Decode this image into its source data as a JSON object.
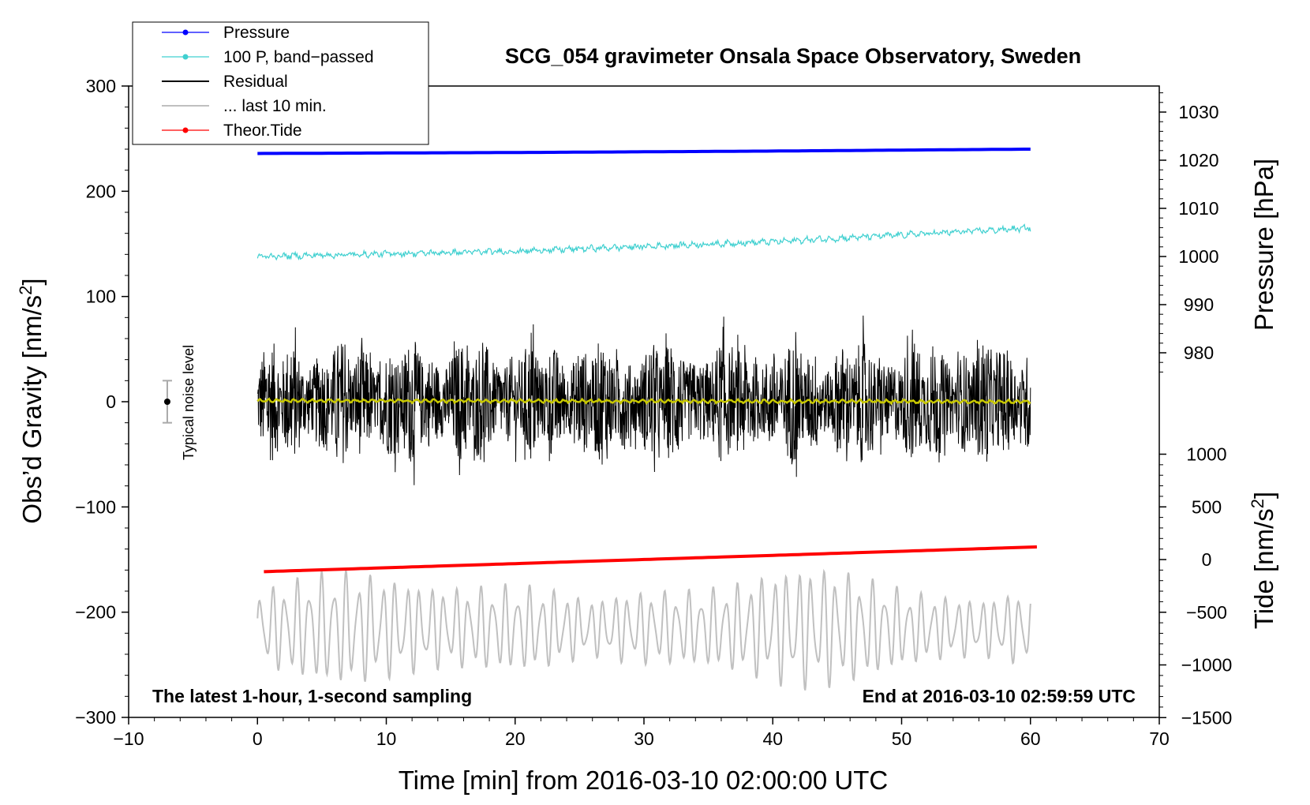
{
  "chart_data": {
    "type": "line",
    "title": "SCG_054 gravimeter Onsala Space Observatory, Sweden",
    "xlabel": "Time [min] from 2016-03-10 02:00:00 UTC",
    "ylabel_left": "Obs'd Gravity [nm/s2]",
    "ylabel_pressure": "Pressure [hPa]",
    "ylabel_tide": "Tide [nm/s2]",
    "xlim": [
      -10,
      70
    ],
    "ylim": [
      -300,
      300
    ],
    "x_ticks": [
      -10,
      0,
      10,
      20,
      30,
      40,
      50,
      60,
      70
    ],
    "x_tick_labels": [
      "−10",
      "0",
      "10",
      "20",
      "30",
      "40",
      "50",
      "60",
      "70"
    ],
    "y_ticks": [
      300,
      200,
      100,
      0,
      -100,
      -200,
      -300
    ],
    "y_tick_labels": [
      "300",
      "200",
      "100",
      "0",
      "−100",
      "−200",
      "−300"
    ],
    "pressure_axis": {
      "ticks": [
        1030,
        1020,
        1010,
        1000,
        990,
        980
      ],
      "tick_labels": [
        "1030",
        "1020",
        "1010",
        "1000",
        "990",
        "980"
      ]
    },
    "tide_axis": {
      "ticks": [
        1000,
        500,
        0,
        -500,
        -1000,
        -1500
      ],
      "tick_labels": [
        "1000",
        "500",
        "0",
        "−500",
        "−1000",
        "−1500"
      ]
    },
    "legend": [
      {
        "label": "Pressure",
        "color": "#0000ff",
        "marker": true
      },
      {
        "label": "100 P, band−passed",
        "color": "#40d0d0",
        "marker": true
      },
      {
        "label": "Residual",
        "color": "#000000",
        "marker": false
      },
      {
        "label": "... last 10 min.",
        "color": "#c0c0c0",
        "marker": false
      },
      {
        "label": "Theor.Tide",
        "color": "#ff0000",
        "marker": true
      }
    ],
    "series": [
      {
        "name": "Pressure",
        "axis": "pressure_hPa",
        "x": [
          0,
          20,
          40,
          60
        ],
        "values": [
          1021.4,
          1021.6,
          1021.9,
          1022.3
        ]
      },
      {
        "name": "100 P, band-passed",
        "axis": "gravity_nm_s2",
        "x": [
          0,
          20,
          40,
          60
        ],
        "values": [
          138,
          143,
          152,
          165
        ]
      },
      {
        "name": "Residual",
        "axis": "gravity_nm_s2",
        "x": [
          0,
          60
        ],
        "values": [
          0,
          0
        ],
        "noise_amplitude": 60
      },
      {
        "name": "... last 10 min.",
        "axis": "gravity_nm_s2",
        "x": [
          0,
          60
        ],
        "values": [
          -215,
          -215
        ],
        "oscillation_amplitude": 45
      },
      {
        "name": "Theor.Tide",
        "axis": "tide_nm_s2",
        "x": [
          0,
          60
        ],
        "values": [
          -115,
          120
        ]
      },
      {
        "name": "Smoothed residual",
        "axis": "gravity_nm_s2",
        "x": [
          0,
          60
        ],
        "values": [
          1,
          0
        ]
      }
    ],
    "noise_bar": {
      "x": -7,
      "center": 0,
      "half_range": 20,
      "label": "Typical noise level"
    },
    "annotations": {
      "left": "The latest 1-hour, 1-second sampling",
      "right": "End at 2016-03-10 02:59:59 UTC"
    }
  }
}
